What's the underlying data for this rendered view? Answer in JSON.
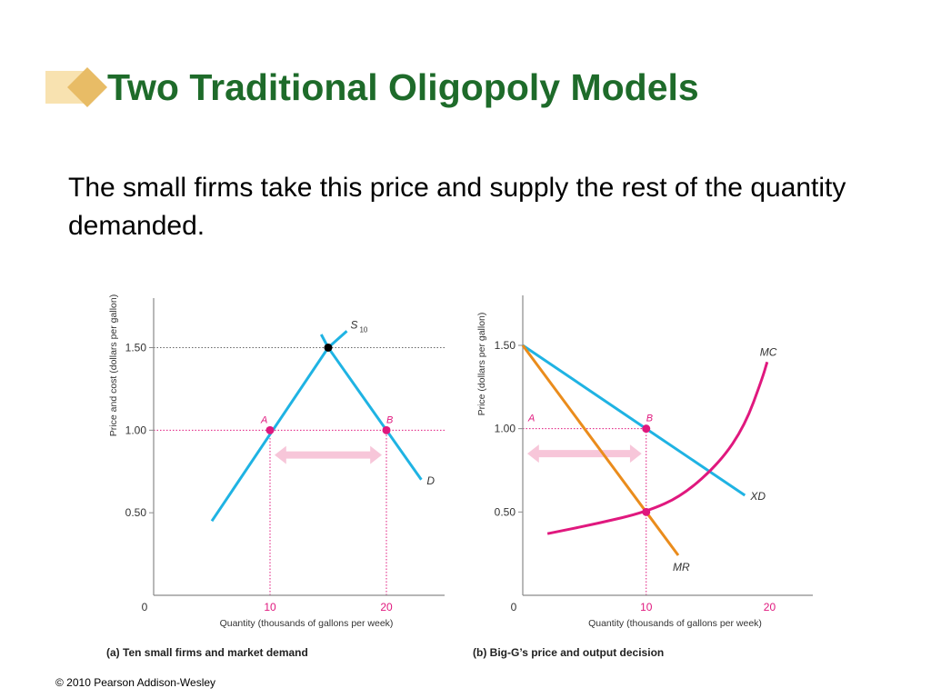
{
  "slide": {
    "title": "Two Traditional Oligopoly Models",
    "body": "The small firms take this price and supply the rest of the quantity demanded.",
    "footer": "© 2010 Pearson Addison-Wesley"
  },
  "colors": {
    "title": "#1e6b2a",
    "bullet_light": "#f8e2b0",
    "bullet_dark": "#e8bc66",
    "axis": "#8a8a8a",
    "demand": "#1fb3e3",
    "marginal_revenue": "#ea8c1c",
    "marginal_cost": "#e0187e",
    "equilibrium_point": "#000000",
    "guide": "#e0187e",
    "arrow": "#f7c6d9"
  },
  "chart_data": [
    {
      "type": "line",
      "caption": "(a) Ten small firms and market demand",
      "xlabel": "Quantity (thousands of gallons per week)",
      "ylabel": "Price and cost (dollars per gallon)",
      "xlim": [
        0,
        25
      ],
      "ylim": [
        0,
        1.8
      ],
      "x_ticks": [
        {
          "value": 0,
          "label": "0"
        },
        {
          "value": 10,
          "label": "10"
        },
        {
          "value": 20,
          "label": "20"
        }
      ],
      "y_ticks": [
        {
          "value": 0.5,
          "label": "0.50"
        },
        {
          "value": 1.0,
          "label": "1.00"
        },
        {
          "value": 1.5,
          "label": "1.50"
        }
      ],
      "grid": false,
      "series": [
        {
          "name": "S10",
          "name_main": "S",
          "name_sub": "10",
          "role": "demand",
          "points": [
            [
              5,
              0.45
            ],
            [
              15,
              1.5
            ],
            [
              16.6,
              1.6
            ]
          ]
        },
        {
          "name": "D",
          "role": "demand",
          "points": [
            [
              14.4,
              1.58
            ],
            [
              15,
              1.5
            ],
            [
              20,
              1.0
            ],
            [
              23,
              0.7
            ]
          ]
        }
      ],
      "points": [
        {
          "label": "",
          "x": 15,
          "y": 1.5,
          "style": "equilibrium_point"
        },
        {
          "label": "A",
          "x": 10,
          "y": 1.0,
          "style": "guide"
        },
        {
          "label": "B",
          "x": 20,
          "y": 1.0,
          "style": "guide"
        }
      ],
      "guides": [
        {
          "kind": "h",
          "y": 1.5,
          "x_from": 0,
          "x_to": 25,
          "color": "gray"
        },
        {
          "kind": "h",
          "y": 1.0,
          "x_from": 0,
          "x_to": 25,
          "color": "guide"
        },
        {
          "kind": "v",
          "x": 10,
          "y_from": 0,
          "y_to": 1.0,
          "color": "guide"
        },
        {
          "kind": "v",
          "x": 20,
          "y_from": 0,
          "y_to": 1.0,
          "color": "guide"
        }
      ],
      "arrow": {
        "from": 10,
        "to": 20,
        "y": 0.85
      }
    },
    {
      "type": "line",
      "caption": "(b) Big-G’s price and output decision",
      "xlabel": "Quantity (thousands of gallons per week)",
      "ylabel": "Price (dollars per gallon)",
      "xlim": [
        0,
        23.5
      ],
      "ylim": [
        0,
        1.8
      ],
      "x_ticks": [
        {
          "value": 0,
          "label": "0"
        },
        {
          "value": 10,
          "label": "10"
        },
        {
          "value": 20,
          "label": "20"
        }
      ],
      "y_ticks": [
        {
          "value": 0.5,
          "label": "0.50"
        },
        {
          "value": 1.0,
          "label": "1.00"
        },
        {
          "value": 1.5,
          "label": "1.50"
        }
      ],
      "grid": false,
      "series": [
        {
          "name": "XD",
          "role": "demand",
          "points": [
            [
              0,
              1.5
            ],
            [
              10,
              1.0
            ],
            [
              18,
              0.6
            ]
          ]
        },
        {
          "name": "MR",
          "role": "marginal_revenue",
          "points": [
            [
              0,
              1.5
            ],
            [
              10,
              0.5
            ],
            [
              12.6,
              0.24
            ]
          ]
        },
        {
          "name": "MC",
          "role": "marginal_cost",
          "points": [
            [
              2,
              0.37
            ],
            [
              6,
              0.43
            ],
            [
              10,
              0.5
            ],
            [
              13,
              0.6
            ],
            [
              16,
              0.8
            ],
            [
              18,
              1.02
            ],
            [
              19.4,
              1.3
            ],
            [
              19.8,
              1.4
            ]
          ]
        }
      ],
      "points": [
        {
          "label": "",
          "x": 10,
          "y": 0.5,
          "style": "guide"
        },
        {
          "label": "A",
          "x": 0,
          "y": 1.0,
          "style": "label_only"
        },
        {
          "label": "B",
          "x": 10,
          "y": 1.0,
          "style": "guide"
        }
      ],
      "guides": [
        {
          "kind": "h",
          "y": 1.0,
          "x_from": 0,
          "x_to": 10,
          "color": "guide"
        },
        {
          "kind": "v",
          "x": 10,
          "y_from": 0,
          "y_to": 1.0,
          "color": "guide"
        }
      ],
      "arrow": {
        "from": 0,
        "to": 10,
        "y": 0.85
      }
    }
  ]
}
